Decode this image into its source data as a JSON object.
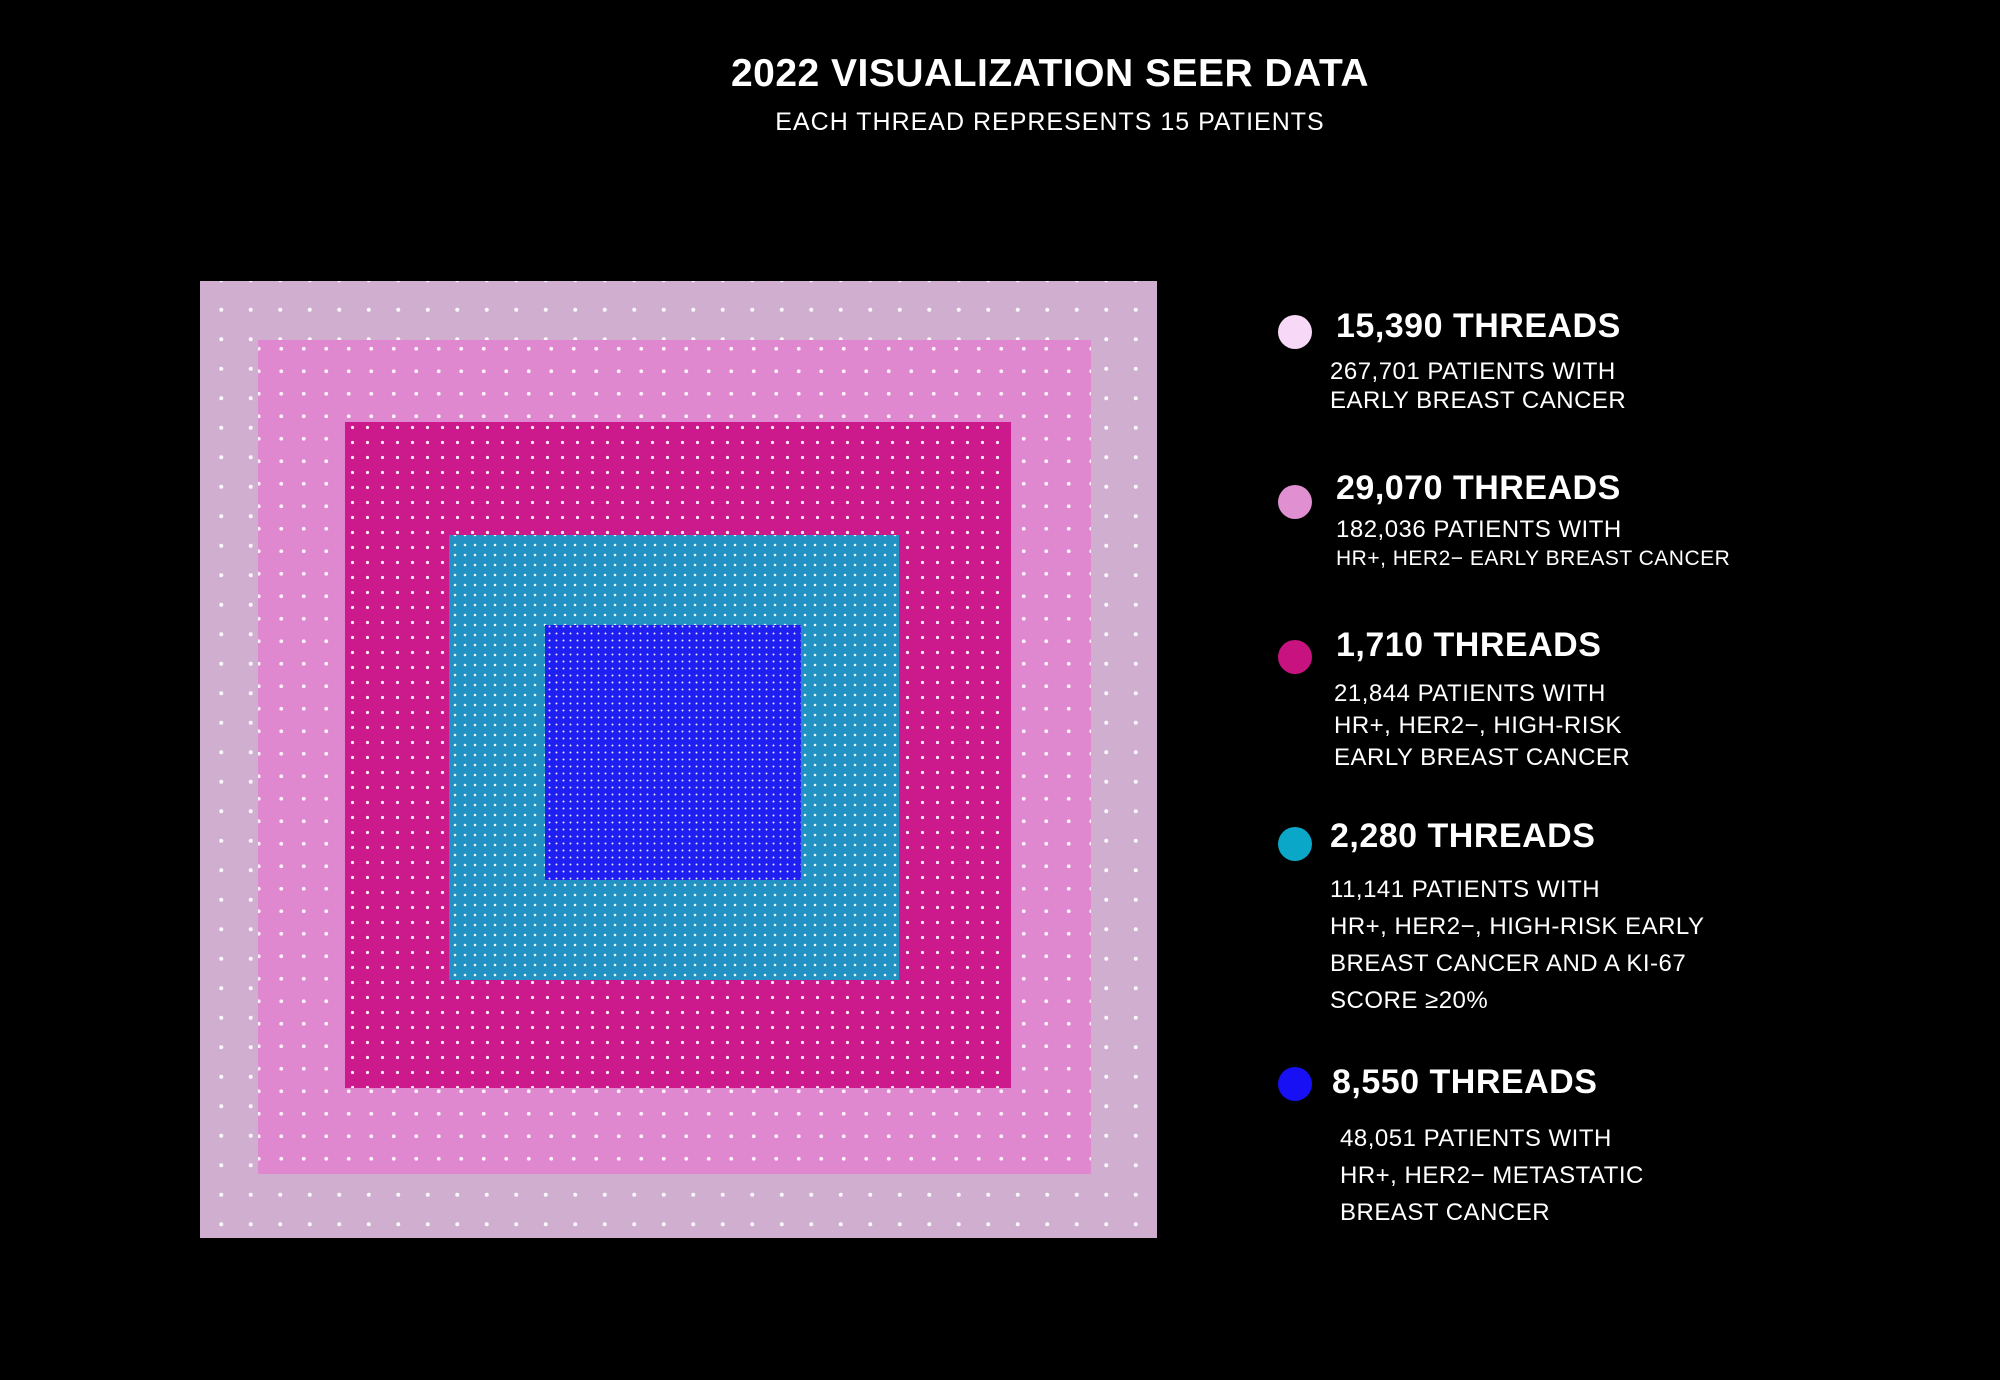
{
  "header": {
    "title": "2022 VISUALIZATION SEER DATA",
    "subtitle": "EACH THREAD REPRESENTS 15 PATIENTS"
  },
  "chart_data": {
    "type": "nested-square",
    "unit_note": "EACH THREAD REPRESENTS 15 PATIENTS",
    "series": [
      {
        "threads_label": "15,390 THREADS",
        "threads": 15390,
        "description_lines": [
          "267,701 PATIENTS WITH",
          "EARLY BREAST CANCER"
        ],
        "patients": 267701,
        "color": "#cfaed0",
        "dot_color": "#f7d8f7"
      },
      {
        "threads_label": "29,070 THREADS",
        "threads": 29070,
        "description_lines": [
          "182,036 PATIENTS WITH",
          "HR+, HER2− EARLY BREAST CANCER"
        ],
        "patients": 182036,
        "color": "#df88cf",
        "dot_color": "#e08fd0"
      },
      {
        "threads_label": "1,710 THREADS",
        "threads": 1710,
        "description_lines": [
          "21,844 PATIENTS WITH",
          "HR+, HER2−, HIGH-RISK",
          "EARLY BREAST CANCER"
        ],
        "patients": 21844,
        "color": "#cc1a8c",
        "dot_color": "#c8127f"
      },
      {
        "threads_label": "2,280 THREADS",
        "threads": 2280,
        "description_lines": [
          "11,141 PATIENTS WITH",
          "HR+, HER2−, HIGH-RISK EARLY",
          "BREAST CANCER AND A KI-67",
          "SCORE ≥20%"
        ],
        "patients": 11141,
        "color": "#2392c3",
        "dot_color": "#0aa7c9"
      },
      {
        "threads_label": "8,550 THREADS",
        "threads": 8550,
        "description_lines": [
          "48,051 PATIENTS WITH",
          "HR+, HER2− METASTATIC",
          "BREAST CANCER"
        ],
        "patients": 48051,
        "color": "#1e1ff0",
        "dot_color": "#1710f5"
      }
    ]
  }
}
